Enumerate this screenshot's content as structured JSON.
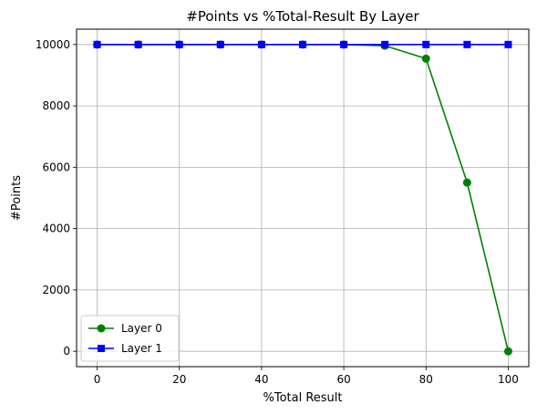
{
  "chart_data": {
    "type": "line",
    "title": "#Points vs %Total-Result By Layer",
    "xlabel": "%Total Result",
    "ylabel": "#Points",
    "xlim": [
      -5,
      105
    ],
    "ylim": [
      -500,
      10500
    ],
    "xticks": [
      0,
      20,
      40,
      60,
      80,
      100
    ],
    "yticks": [
      0,
      2000,
      4000,
      6000,
      8000,
      10000
    ],
    "grid": true,
    "legend_position": "lower-left",
    "x": [
      0,
      10,
      20,
      30,
      40,
      50,
      60,
      70,
      80,
      90,
      100
    ],
    "series": [
      {
        "name": "Layer 0",
        "color": "#008000",
        "marker": "circle",
        "values": [
          10000,
          10000,
          10000,
          10000,
          10000,
          10000,
          10000,
          9960,
          9540,
          5500,
          0
        ]
      },
      {
        "name": "Layer 1",
        "color": "#0000ff",
        "marker": "square",
        "values": [
          10000,
          10000,
          10000,
          10000,
          10000,
          10000,
          10000,
          10000,
          10000,
          10000,
          10000
        ]
      }
    ]
  }
}
